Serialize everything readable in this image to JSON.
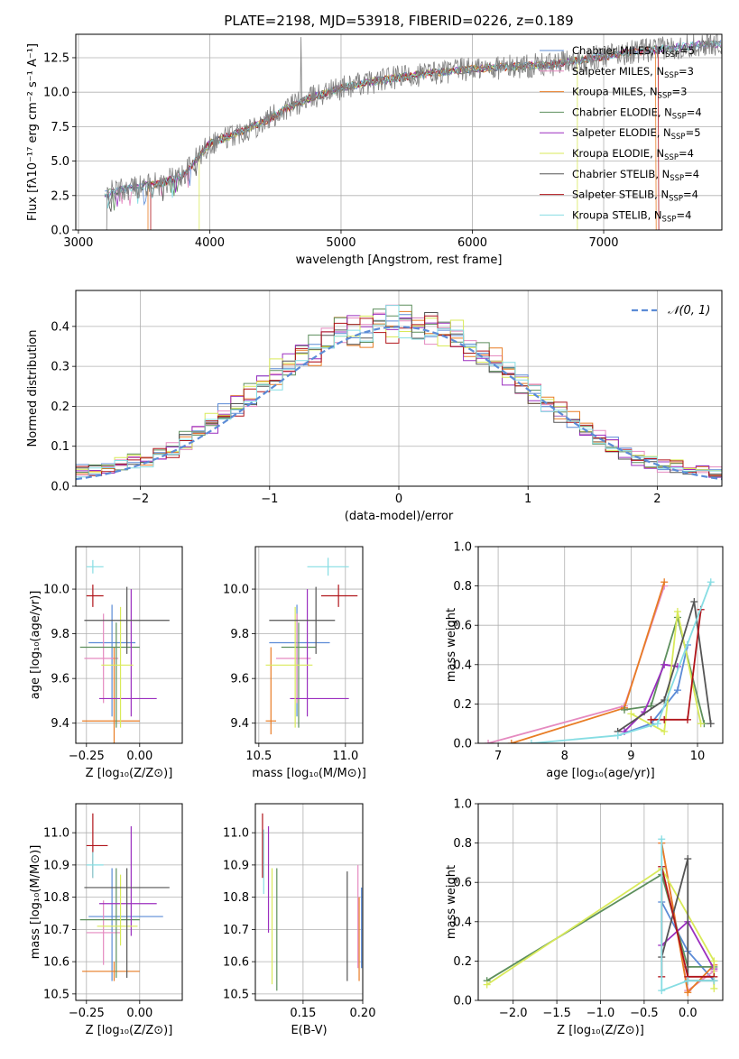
{
  "figure": {
    "title": "PLATE=2198, MJD=53918, FIBERID=0226, z=0.189"
  },
  "colors": {
    "data": "#808080",
    "Chabrier MILES": "#5b8bd6",
    "Salpeter MILES": "#e58ac0",
    "Kroupa MILES": "#e87c24",
    "Chabrier ELODIE": "#5d8f5d",
    "Salpeter ELODIE": "#9b2fbf",
    "Kroupa ELODIE": "#d9ea5a",
    "Chabrier STELIB": "#555555",
    "Salpeter STELIB": "#b0141a",
    "Kroupa STELIB": "#86dde3",
    "Normal": "#5b8bd6"
  },
  "chart_data": [
    {
      "id": "spectrum",
      "type": "line",
      "title": "PLATE=2198, MJD=53918, FIBERID=0226, z=0.189",
      "xlabel": "wavelength [Angstrom, rest frame]",
      "ylabel": "Flux [fλ10⁻¹⁷ erg cm⁻² s⁻¹ A⁻¹]",
      "xlim": [
        2980,
        7900
      ],
      "ylim": [
        0,
        14.2
      ],
      "xticks": [
        3000,
        4000,
        5000,
        6000,
        7000
      ],
      "yticks": [
        0.0,
        2.5,
        5.0,
        7.5,
        10.0,
        12.5
      ],
      "legend_position": "upper-right",
      "series": [
        {
          "name": "Chabrier MILES, N_SSP=5",
          "legend": "Chabrier MILES, N",
          "sub": "SSP",
          "tail": "=5"
        },
        {
          "name": "Salpeter MILES, N_SSP=3",
          "legend": "Salpeter MILES, N",
          "sub": "SSP",
          "tail": "=3"
        },
        {
          "name": "Kroupa MILES, N_SSP=3",
          "legend": "Kroupa MILES, N",
          "sub": "SSP",
          "tail": "=3"
        },
        {
          "name": "Chabrier ELODIE, N_SSP=4",
          "legend": "Chabrier ELODIE, N",
          "sub": "SSP",
          "tail": "=4"
        },
        {
          "name": "Salpeter ELODIE, N_SSP=5",
          "legend": "Salpeter ELODIE, N",
          "sub": "SSP",
          "tail": "=5"
        },
        {
          "name": "Kroupa ELODIE, N_SSP=4",
          "legend": "Kroupa ELODIE, N",
          "sub": "SSP",
          "tail": "=4"
        },
        {
          "name": "Chabrier STELIB, N_SSP=4",
          "legend": "Chabrier STELIB, N",
          "sub": "SSP",
          "tail": "=4"
        },
        {
          "name": "Salpeter STELIB, N_SSP=4",
          "legend": "Salpeter STELIB, N",
          "sub": "SSP",
          "tail": "=4"
        },
        {
          "name": "Kroupa STELIB, N_SSP=4",
          "legend": "Kroupa STELIB, N",
          "sub": "SSP",
          "tail": "=4"
        }
      ],
      "continuum": {
        "x": [
          3200,
          3400,
          3600,
          3800,
          4000,
          4200,
          4400,
          4600,
          4800,
          5000,
          5200,
          5400,
          5600,
          5800,
          6000,
          6200,
          6400,
          6600,
          6800,
          7000,
          7200,
          7400,
          7600,
          7800
        ],
        "y": [
          2.6,
          3.1,
          3.3,
          4.0,
          6.3,
          7.0,
          7.8,
          8.9,
          9.7,
          10.3,
          10.7,
          11.0,
          11.3,
          11.5,
          11.7,
          11.8,
          11.9,
          12.0,
          12.3,
          12.6,
          12.9,
          13.1,
          13.3,
          13.5
        ]
      }
    },
    {
      "id": "residuals",
      "type": "histogram",
      "xlabel": "(data-model)/error",
      "ylabel": "Normed distribution",
      "xlim": [
        -2.5,
        2.5
      ],
      "ylim": [
        0,
        0.49
      ],
      "xticks": [
        -2,
        -1,
        0,
        1,
        2
      ],
      "yticks": [
        0.0,
        0.1,
        0.2,
        0.3,
        0.4
      ],
      "bin_width": 0.1,
      "legend": "𝒩(0, 1)",
      "mean_envelope": {
        "x": [
          -2.5,
          -2.3,
          -2.1,
          -1.9,
          -1.7,
          -1.5,
          -1.3,
          -1.1,
          -0.9,
          -0.7,
          -0.5,
          -0.3,
          -0.1,
          0.1,
          0.3,
          0.5,
          0.7,
          0.9,
          1.1,
          1.3,
          1.5,
          1.7,
          1.9,
          2.1,
          2.3,
          2.5
        ],
        "y": [
          0.035,
          0.045,
          0.06,
          0.07,
          0.1,
          0.15,
          0.19,
          0.24,
          0.29,
          0.33,
          0.37,
          0.39,
          0.41,
          0.4,
          0.39,
          0.36,
          0.32,
          0.27,
          0.22,
          0.17,
          0.13,
          0.09,
          0.065,
          0.05,
          0.04,
          0.035
        ]
      }
    },
    {
      "id": "age_vs_Z",
      "type": "errorbar",
      "xlabel": "Z [log₁₀(Z/Z⊙)]",
      "ylabel": "age  [log₁₀(age/yr)]",
      "xlim": [
        -0.3,
        0.2
      ],
      "ylim": [
        9.31,
        10.19
      ],
      "xticks": [
        -0.25,
        0.0
      ],
      "yticks": [
        9.4,
        9.6,
        9.8,
        10.0
      ],
      "points": [
        {
          "s": "Chabrier MILES",
          "x": -0.13,
          "y": 9.76,
          "xerr": [
            0.11,
            0.11
          ],
          "yerr": [
            0.33,
            0.17
          ]
        },
        {
          "s": "Salpeter MILES",
          "x": -0.17,
          "y": 9.69,
          "xerr": [
            0.09,
            0.07
          ],
          "yerr": [
            0.2,
            0.2
          ]
        },
        {
          "s": "Kroupa MILES",
          "x": -0.12,
          "y": 9.41,
          "xerr": [
            0.15,
            0.12
          ],
          "yerr": [
            0.1,
            0.33
          ]
        },
        {
          "s": "Chabrier ELODIE",
          "x": -0.11,
          "y": 9.74,
          "xerr": [
            0.17,
            0.11
          ],
          "yerr": [
            0.36,
            0.11
          ]
        },
        {
          "s": "Salpeter ELODIE",
          "x": -0.04,
          "y": 9.51,
          "xerr": [
            0.15,
            0.12
          ],
          "yerr": [
            0.08,
            0.49
          ]
        },
        {
          "s": "Kroupa ELODIE",
          "x": -0.09,
          "y": 9.66,
          "xerr": [
            0.09,
            0.06
          ],
          "yerr": [
            0.28,
            0.26
          ]
        },
        {
          "s": "Chabrier STELIB",
          "x": -0.06,
          "y": 9.86,
          "xerr": [
            0.2,
            0.2
          ],
          "yerr": [
            0.15,
            0.15
          ]
        },
        {
          "s": "Salpeter STELIB",
          "x": -0.22,
          "y": 9.97,
          "xerr": [
            0.03,
            0.05
          ],
          "yerr": [
            0.05,
            0.05
          ]
        },
        {
          "s": "Kroupa STELIB",
          "x": -0.22,
          "y": 10.1,
          "xerr": [
            0.03,
            0.05
          ],
          "yerr": [
            0.03,
            0.03
          ]
        }
      ]
    },
    {
      "id": "age_vs_mass",
      "type": "errorbar",
      "xlabel": "mass [log₁₀(M/M⊙)]",
      "ylabel": "",
      "xlim": [
        10.48,
        11.1
      ],
      "ylim": [
        9.31,
        10.19
      ],
      "xticks": [
        10.5,
        11.0
      ],
      "yticks": [
        9.4,
        9.6,
        9.8,
        10.0
      ],
      "points": [
        {
          "s": "Chabrier MILES",
          "x": 10.72,
          "y": 9.76,
          "xerr": [
            0.16,
            0.19
          ],
          "yerr": [
            0.33,
            0.17
          ]
        },
        {
          "s": "Salpeter MILES",
          "x": 10.72,
          "y": 9.69,
          "xerr": [
            0.12,
            0.08
          ],
          "yerr": [
            0.2,
            0.2
          ]
        },
        {
          "s": "Kroupa MILES",
          "x": 10.57,
          "y": 9.41,
          "xerr": [
            0.03,
            0.03
          ],
          "yerr": [
            0.06,
            0.33
          ]
        },
        {
          "s": "Chabrier ELODIE",
          "x": 10.73,
          "y": 9.74,
          "xerr": [
            0.1,
            0.1
          ],
          "yerr": [
            0.36,
            0.11
          ]
        },
        {
          "s": "Salpeter ELODIE",
          "x": 10.78,
          "y": 9.51,
          "xerr": [
            0.1,
            0.24
          ],
          "yerr": [
            0.08,
            0.49
          ]
        },
        {
          "s": "Kroupa ELODIE",
          "x": 10.71,
          "y": 9.66,
          "xerr": [
            0.17,
            0.1
          ],
          "yerr": [
            0.28,
            0.26
          ]
        },
        {
          "s": "Chabrier STELIB",
          "x": 10.83,
          "y": 9.86,
          "xerr": [
            0.27,
            0.11
          ],
          "yerr": [
            0.15,
            0.15
          ]
        },
        {
          "s": "Salpeter STELIB",
          "x": 10.96,
          "y": 9.97,
          "xerr": [
            0.1,
            0.11
          ],
          "yerr": [
            0.05,
            0.05
          ]
        },
        {
          "s": "Kroupa STELIB",
          "x": 10.9,
          "y": 10.1,
          "xerr": [
            0.12,
            0.12
          ],
          "yerr": [
            0.04,
            0.04
          ]
        }
      ]
    },
    {
      "id": "weight_vs_age",
      "type": "line",
      "xlabel": "age  [log₁₀(age/yr)]",
      "ylabel": "mass weight",
      "xlim": [
        6.7,
        10.38
      ],
      "ylim": [
        0,
        1.0
      ],
      "xticks": [
        7,
        8,
        9,
        10
      ],
      "yticks": [
        0.0,
        0.2,
        0.4,
        0.6,
        0.8,
        1.0
      ],
      "series": [
        {
          "s": "Chabrier MILES",
          "x": [
            8.8,
            9.3,
            9.7,
            9.85
          ],
          "y": [
            0.04,
            0.1,
            0.27,
            0.5
          ]
        },
        {
          "s": "Salpeter MILES",
          "x": [
            6.85,
            8.9,
            9.5
          ],
          "y": [
            0.0,
            0.19,
            0.8
          ]
        },
        {
          "s": "Kroupa MILES",
          "x": [
            7.2,
            8.9,
            9.5
          ],
          "y": [
            0.0,
            0.18,
            0.82
          ]
        },
        {
          "s": "Chabrier ELODIE",
          "x": [
            8.9,
            9.3,
            9.7,
            10.1
          ],
          "y": [
            0.17,
            0.19,
            0.64,
            0.1
          ]
        },
        {
          "s": "Salpeter ELODIE",
          "x": [
            8.9,
            9.2,
            9.5,
            9.7
          ],
          "y": [
            0.06,
            0.16,
            0.4,
            0.39
          ]
        },
        {
          "s": "Kroupa ELODIE",
          "x": [
            9.0,
            9.5,
            9.7,
            10.05
          ],
          "y": [
            0.15,
            0.06,
            0.67,
            0.1
          ]
        },
        {
          "s": "Chabrier STELIB",
          "x": [
            8.8,
            9.5,
            9.95,
            10.2
          ],
          "y": [
            0.06,
            0.22,
            0.72,
            0.1
          ]
        },
        {
          "s": "Salpeter STELIB",
          "x": [
            9.3,
            9.5,
            9.85,
            10.05
          ],
          "y": [
            0.12,
            0.12,
            0.12,
            0.68
          ]
        },
        {
          "s": "Kroupa STELIB",
          "x": [
            7.5,
            8.8,
            9.4,
            10.2
          ],
          "y": [
            0.0,
            0.04,
            0.1,
            0.82
          ]
        }
      ]
    },
    {
      "id": "mass_vs_Z",
      "type": "errorbar",
      "xlabel": "Z [log₁₀(Z/Z⊙)]",
      "ylabel": "mass [log₁₀(M/M⊙)]",
      "xlim": [
        -0.3,
        0.2
      ],
      "ylim": [
        10.48,
        11.09
      ],
      "xticks": [
        -0.25,
        0.0
      ],
      "yticks": [
        10.5,
        10.6,
        10.7,
        10.8,
        10.9,
        11.0
      ],
      "points": [
        {
          "s": "Chabrier MILES",
          "x": -0.13,
          "y": 10.74,
          "xerr": [
            0.11,
            0.24
          ],
          "yerr": [
            0.2,
            0.15
          ]
        },
        {
          "s": "Salpeter MILES",
          "x": -0.17,
          "y": 10.69,
          "xerr": [
            0.08,
            0.08
          ],
          "yerr": [
            0.1,
            0.1
          ]
        },
        {
          "s": "Kroupa MILES",
          "x": -0.12,
          "y": 10.57,
          "xerr": [
            0.15,
            0.12
          ],
          "yerr": [
            0.03,
            0.03
          ]
        },
        {
          "s": "Chabrier ELODIE",
          "x": -0.11,
          "y": 10.73,
          "xerr": [
            0.17,
            0.11
          ],
          "yerr": [
            0.18,
            0.16
          ]
        },
        {
          "s": "Salpeter ELODIE",
          "x": -0.04,
          "y": 10.78,
          "xerr": [
            0.15,
            0.12
          ],
          "yerr": [
            0.1,
            0.24
          ]
        },
        {
          "s": "Kroupa ELODIE",
          "x": -0.09,
          "y": 10.71,
          "xerr": [
            0.11,
            0.08
          ],
          "yerr": [
            0.06,
            0.16
          ]
        },
        {
          "s": "Chabrier STELIB",
          "x": -0.06,
          "y": 10.83,
          "xerr": [
            0.2,
            0.2
          ],
          "yerr": [
            0.28,
            0.06
          ]
        },
        {
          "s": "Salpeter STELIB",
          "x": -0.22,
          "y": 10.96,
          "xerr": [
            0.03,
            0.07
          ],
          "yerr": [
            0.1,
            0.1
          ]
        },
        {
          "s": "Kroupa STELIB",
          "x": -0.22,
          "y": 10.9,
          "xerr": [
            0.03,
            0.05
          ],
          "yerr": [
            0.04,
            0.04
          ]
        }
      ]
    },
    {
      "id": "mass_vs_ebv",
      "type": "errorbar",
      "xlabel": "E(B-V)",
      "ylabel": "",
      "xlim": [
        0.11,
        0.2
      ],
      "ylim": [
        10.48,
        11.09
      ],
      "xticks": [
        0.15,
        0.2
      ],
      "yticks": [
        10.5,
        10.6,
        10.7,
        10.8,
        10.9,
        11.0
      ],
      "points": [
        {
          "s": "Chabrier MILES",
          "x": 0.199,
          "y": 10.71,
          "xerr": [
            0,
            0
          ],
          "yerr": [
            0.13,
            0.12
          ]
        },
        {
          "s": "Salpeter MILES",
          "x": 0.196,
          "y": 10.72,
          "xerr": [
            0,
            0
          ],
          "yerr": [
            0.14,
            0.18
          ]
        },
        {
          "s": "Kroupa MILES",
          "x": 0.197,
          "y": 10.68,
          "xerr": [
            0,
            0
          ],
          "yerr": [
            0.14,
            0.12
          ]
        },
        {
          "s": "Chabrier ELODIE",
          "x": 0.128,
          "y": 10.7,
          "xerr": [
            0,
            0
          ],
          "yerr": [
            0.19,
            0.19
          ]
        },
        {
          "s": "Salpeter ELODIE",
          "x": 0.121,
          "y": 10.86,
          "xerr": [
            0,
            0
          ],
          "yerr": [
            0.17,
            0.16
          ]
        },
        {
          "s": "Kroupa ELODIE",
          "x": 0.124,
          "y": 10.71,
          "xerr": [
            0,
            0
          ],
          "yerr": [
            0.18,
            0.18
          ]
        },
        {
          "s": "Chabrier STELIB",
          "x": 0.187,
          "y": 10.71,
          "xerr": [
            0,
            0
          ],
          "yerr": [
            0.17,
            0.17
          ]
        },
        {
          "s": "Salpeter STELIB",
          "x": 0.116,
          "y": 10.96,
          "xerr": [
            0,
            0
          ],
          "yerr": [
            0.1,
            0.1
          ]
        },
        {
          "s": "Kroupa STELIB",
          "x": 0.117,
          "y": 10.91,
          "xerr": [
            0,
            0
          ],
          "yerr": [
            0.1,
            0.1
          ]
        }
      ]
    },
    {
      "id": "weight_vs_Z",
      "type": "line",
      "xlabel": "Z [log₁₀(Z/Z⊙)]",
      "ylabel": "mass weight",
      "xlim": [
        -2.4,
        0.4
      ],
      "ylim": [
        0,
        1.0
      ],
      "xticks": [
        -2.0,
        -1.5,
        -1.0,
        -0.5,
        0.0
      ],
      "yticks": [
        0.0,
        0.2,
        0.4,
        0.6,
        0.8,
        1.0
      ],
      "series": [
        {
          "s": "Chabrier MILES",
          "x": [
            -0.3,
            0.0,
            0.3
          ],
          "y": [
            0.5,
            0.25,
            0.1
          ]
        },
        {
          "s": "Salpeter MILES",
          "x": [
            -0.3,
            0.0,
            0.3
          ],
          "y": [
            0.8,
            0.05,
            0.15
          ]
        },
        {
          "s": "Kroupa MILES",
          "x": [
            -0.3,
            0.0,
            0.3
          ],
          "y": [
            0.8,
            0.04,
            0.18
          ]
        },
        {
          "s": "Chabrier ELODIE",
          "x": [
            -2.3,
            -0.3,
            0.0,
            0.3
          ],
          "y": [
            0.1,
            0.64,
            0.17,
            0.17
          ]
        },
        {
          "s": "Salpeter ELODIE",
          "x": [
            -0.3,
            0.0,
            0.3
          ],
          "y": [
            0.28,
            0.4,
            0.16
          ]
        },
        {
          "s": "Kroupa ELODIE",
          "x": [
            -2.3,
            -0.3,
            0.3,
            0.3
          ],
          "y": [
            0.08,
            0.67,
            0.2,
            0.06
          ]
        },
        {
          "s": "Chabrier STELIB",
          "x": [
            -0.3,
            0.0,
            0.0,
            0.3
          ],
          "y": [
            0.22,
            0.72,
            0.1,
            0.1
          ]
        },
        {
          "s": "Salpeter STELIB",
          "x": [
            -0.3,
            -0.3,
            0.0,
            0.3
          ],
          "y": [
            0.12,
            0.68,
            0.12,
            0.12
          ]
        },
        {
          "s": "Kroupa STELIB",
          "x": [
            -0.3,
            -0.3,
            0.0,
            0.3
          ],
          "y": [
            0.82,
            0.05,
            0.1,
            0.1
          ]
        }
      ]
    }
  ]
}
